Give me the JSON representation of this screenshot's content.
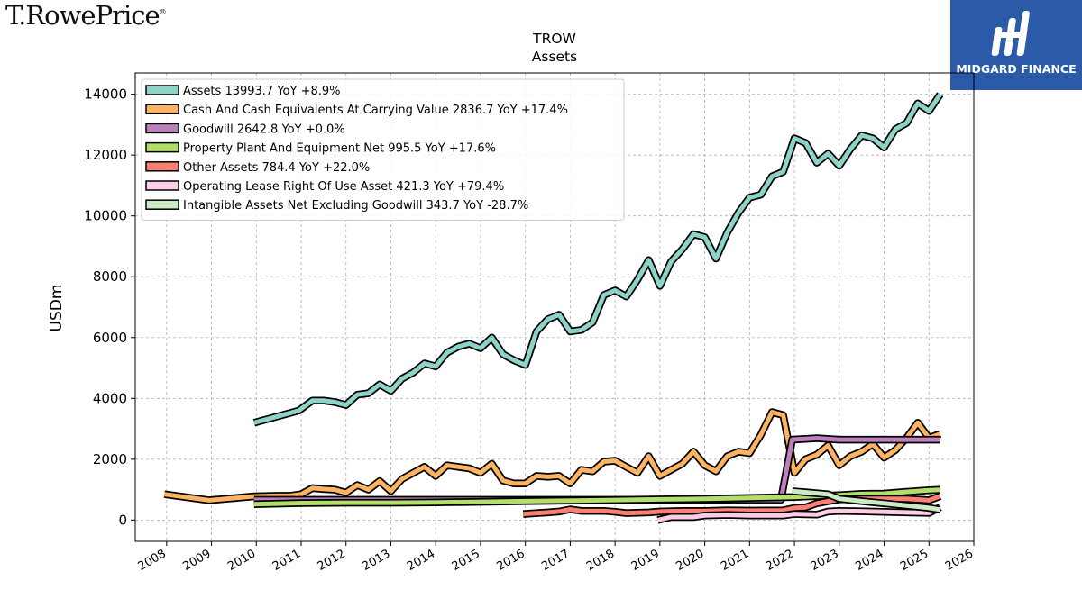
{
  "branding": {
    "company_logo_text": "T.RowePrice",
    "registered_mark": "®",
    "badge_text": "MIDGARD FINANCE"
  },
  "colors": {
    "Assets": "#8dd3c7",
    "Cash And Cash Equivalents At Carrying Value": "#fdb462",
    "Goodwill": "#bc80bd",
    "Property Plant And Equipment Net": "#b3de69",
    "Other Assets": "#fb8072",
    "Operating Lease Right Of Use Asset": "#fccde5",
    "Intangible Assets Net Excluding Goodwill": "#ccebc5",
    "badge": "#2a5aa8",
    "grid": "#b0b0b0"
  },
  "chart_data": {
    "type": "line",
    "title": "TROW",
    "subtitle": "Assets",
    "xlabel": "",
    "ylabel": "USDm",
    "xlim": [
      2007.3,
      2026.0
    ],
    "ylim": [
      -700,
      14700
    ],
    "xticks": [
      "2008",
      "2009",
      "2010",
      "2011",
      "2012",
      "2013",
      "2014",
      "2015",
      "2016",
      "2017",
      "2018",
      "2019",
      "2020",
      "2021",
      "2022",
      "2023",
      "2024",
      "2025",
      "2026"
    ],
    "yticks": [
      0,
      2000,
      4000,
      6000,
      8000,
      10000,
      12000,
      14000
    ],
    "grid": true,
    "legend_position": "top-left",
    "series": [
      {
        "name": "Assets",
        "legend": "Assets  13993.7 YoY +8.9%",
        "points": [
          [
            2009.95,
            3200
          ],
          [
            2010.95,
            3600
          ],
          [
            2011.25,
            3930
          ],
          [
            2011.5,
            3930
          ],
          [
            2011.75,
            3880
          ],
          [
            2012.0,
            3780
          ],
          [
            2012.25,
            4120
          ],
          [
            2012.5,
            4170
          ],
          [
            2012.75,
            4460
          ],
          [
            2013.0,
            4250
          ],
          [
            2013.25,
            4650
          ],
          [
            2013.5,
            4850
          ],
          [
            2013.75,
            5150
          ],
          [
            2014.0,
            5050
          ],
          [
            2014.25,
            5500
          ],
          [
            2014.5,
            5700
          ],
          [
            2014.75,
            5800
          ],
          [
            2015.0,
            5650
          ],
          [
            2015.25,
            6000
          ],
          [
            2015.5,
            5450
          ],
          [
            2015.75,
            5250
          ],
          [
            2016.0,
            5100
          ],
          [
            2016.25,
            6200
          ],
          [
            2016.5,
            6600
          ],
          [
            2016.75,
            6750
          ],
          [
            2017.0,
            6200
          ],
          [
            2017.25,
            6250
          ],
          [
            2017.5,
            6500
          ],
          [
            2017.75,
            7400
          ],
          [
            2018.0,
            7550
          ],
          [
            2018.25,
            7350
          ],
          [
            2018.5,
            7900
          ],
          [
            2018.75,
            8550
          ],
          [
            2019.0,
            7700
          ],
          [
            2019.25,
            8500
          ],
          [
            2019.5,
            8900
          ],
          [
            2019.75,
            9400
          ],
          [
            2020.0,
            9300
          ],
          [
            2020.25,
            8600
          ],
          [
            2020.5,
            9450
          ],
          [
            2020.75,
            10100
          ],
          [
            2021.0,
            10600
          ],
          [
            2021.25,
            10700
          ],
          [
            2021.5,
            11300
          ],
          [
            2021.75,
            11450
          ],
          [
            2022.0,
            12550
          ],
          [
            2022.25,
            12400
          ],
          [
            2022.5,
            11750
          ],
          [
            2022.75,
            12050
          ],
          [
            2023.0,
            11650
          ],
          [
            2023.25,
            12200
          ],
          [
            2023.5,
            12650
          ],
          [
            2023.75,
            12550
          ],
          [
            2024.0,
            12250
          ],
          [
            2024.25,
            12850
          ],
          [
            2024.5,
            13050
          ],
          [
            2024.75,
            13700
          ],
          [
            2025.0,
            13450
          ],
          [
            2025.25,
            13993.7
          ]
        ]
      },
      {
        "name": "Cash And Cash Equivalents At Carrying Value",
        "legend": "Cash And Cash Equivalents At Carrying Value  2836.7 YoY +17.4%",
        "points": [
          [
            2007.95,
            850
          ],
          [
            2008.95,
            650
          ],
          [
            2009.95,
            780
          ],
          [
            2010.5,
            800
          ],
          [
            2010.75,
            800
          ],
          [
            2011.0,
            850
          ],
          [
            2011.25,
            1050
          ],
          [
            2011.5,
            1020
          ],
          [
            2011.75,
            1000
          ],
          [
            2012.0,
            900
          ],
          [
            2012.25,
            1150
          ],
          [
            2012.5,
            1000
          ],
          [
            2012.75,
            1280
          ],
          [
            2013.0,
            950
          ],
          [
            2013.25,
            1350
          ],
          [
            2013.5,
            1550
          ],
          [
            2013.75,
            1750
          ],
          [
            2014.0,
            1450
          ],
          [
            2014.25,
            1800
          ],
          [
            2014.5,
            1750
          ],
          [
            2014.75,
            1700
          ],
          [
            2015.0,
            1550
          ],
          [
            2015.25,
            1850
          ],
          [
            2015.5,
            1300
          ],
          [
            2015.75,
            1200
          ],
          [
            2016.0,
            1200
          ],
          [
            2016.25,
            1450
          ],
          [
            2016.5,
            1420
          ],
          [
            2016.75,
            1450
          ],
          [
            2017.0,
            1200
          ],
          [
            2017.25,
            1650
          ],
          [
            2017.5,
            1600
          ],
          [
            2017.75,
            1920
          ],
          [
            2018.0,
            1950
          ],
          [
            2018.25,
            1750
          ],
          [
            2018.5,
            1550
          ],
          [
            2018.75,
            2100
          ],
          [
            2019.0,
            1450
          ],
          [
            2019.25,
            1650
          ],
          [
            2019.5,
            1850
          ],
          [
            2019.75,
            2250
          ],
          [
            2020.0,
            1800
          ],
          [
            2020.25,
            1600
          ],
          [
            2020.5,
            2100
          ],
          [
            2020.75,
            2250
          ],
          [
            2021.0,
            2200
          ],
          [
            2021.25,
            2800
          ],
          [
            2021.5,
            3550
          ],
          [
            2021.75,
            3450
          ],
          [
            2022.0,
            1550
          ],
          [
            2022.25,
            2000
          ],
          [
            2022.5,
            2150
          ],
          [
            2022.75,
            2450
          ],
          [
            2023.0,
            1800
          ],
          [
            2023.25,
            2100
          ],
          [
            2023.5,
            2250
          ],
          [
            2023.75,
            2500
          ],
          [
            2024.0,
            2050
          ],
          [
            2024.25,
            2300
          ],
          [
            2024.5,
            2700
          ],
          [
            2024.75,
            3200
          ],
          [
            2025.0,
            2700
          ],
          [
            2025.25,
            2836.7
          ]
        ]
      },
      {
        "name": "Goodwill",
        "legend": "Goodwill  2642.8 YoY +0.0%",
        "points": [
          [
            2009.95,
            665
          ],
          [
            2011.0,
            665
          ],
          [
            2015.0,
            665
          ],
          [
            2019.0,
            665
          ],
          [
            2020.0,
            665
          ],
          [
            2021.0,
            665
          ],
          [
            2021.7,
            665
          ],
          [
            2021.95,
            2642.8
          ],
          [
            2022.5,
            2690
          ],
          [
            2023.0,
            2642.8
          ],
          [
            2024.0,
            2642.8
          ],
          [
            2025.25,
            2642.8
          ]
        ]
      },
      {
        "name": "Property Plant And Equipment Net",
        "legend": "Property Plant And Equipment Net  995.5 YoY +17.6%",
        "points": [
          [
            2009.95,
            520
          ],
          [
            2011.0,
            560
          ],
          [
            2012.0,
            570
          ],
          [
            2013.0,
            570
          ],
          [
            2014.0,
            580
          ],
          [
            2015.0,
            600
          ],
          [
            2016.0,
            620
          ],
          [
            2017.0,
            640
          ],
          [
            2018.0,
            660
          ],
          [
            2019.0,
            680
          ],
          [
            2020.0,
            700
          ],
          [
            2021.0,
            730
          ],
          [
            2022.0,
            760
          ],
          [
            2023.0,
            820
          ],
          [
            2023.5,
            860
          ],
          [
            2024.0,
            870
          ],
          [
            2024.5,
            930
          ],
          [
            2025.0,
            980
          ],
          [
            2025.25,
            995.5
          ]
        ]
      },
      {
        "name": "Other Assets",
        "legend": "Other Assets  784.4 YoY +22.0%",
        "points": [
          [
            2015.95,
            200
          ],
          [
            2016.5,
            250
          ],
          [
            2016.75,
            280
          ],
          [
            2017.0,
            350
          ],
          [
            2017.25,
            300
          ],
          [
            2017.75,
            300
          ],
          [
            2018.0,
            270
          ],
          [
            2018.25,
            230
          ],
          [
            2018.75,
            250
          ],
          [
            2019.0,
            280
          ],
          [
            2019.5,
            300
          ],
          [
            2020.0,
            300
          ],
          [
            2020.5,
            320
          ],
          [
            2021.0,
            310
          ],
          [
            2021.75,
            320
          ],
          [
            2022.0,
            400
          ],
          [
            2022.25,
            420
          ],
          [
            2022.5,
            550
          ],
          [
            2022.75,
            620
          ],
          [
            2023.0,
            680
          ],
          [
            2023.5,
            700
          ],
          [
            2024.0,
            700
          ],
          [
            2024.5,
            700
          ],
          [
            2025.0,
            650
          ],
          [
            2025.25,
            784.4
          ]
        ]
      },
      {
        "name": "Operating Lease Right Of Use Asset",
        "legend": "Operating Lease Right Of Use Asset  421.3 YoY +79.4%",
        "points": [
          [
            2018.95,
            0
          ],
          [
            2019.25,
            100
          ],
          [
            2019.75,
            100
          ],
          [
            2020.0,
            150
          ],
          [
            2020.5,
            170
          ],
          [
            2021.0,
            150
          ],
          [
            2021.75,
            150
          ],
          [
            2022.0,
            200
          ],
          [
            2022.5,
            180
          ],
          [
            2022.75,
            280
          ],
          [
            2023.0,
            300
          ],
          [
            2023.5,
            290
          ],
          [
            2024.0,
            270
          ],
          [
            2024.5,
            250
          ],
          [
            2025.0,
            235
          ],
          [
            2025.25,
            421.3
          ]
        ]
      },
      {
        "name": "Intangible Assets Net Excluding Goodwill",
        "legend": "Intangible Assets Net Excluding Goodwill  343.7 YoY -28.7%",
        "points": [
          [
            2021.95,
            950
          ],
          [
            2022.75,
            850
          ],
          [
            2023.0,
            700
          ],
          [
            2023.5,
            620
          ],
          [
            2024.0,
            550
          ],
          [
            2024.5,
            480
          ],
          [
            2025.0,
            400
          ],
          [
            2025.25,
            343.7
          ]
        ]
      }
    ]
  }
}
